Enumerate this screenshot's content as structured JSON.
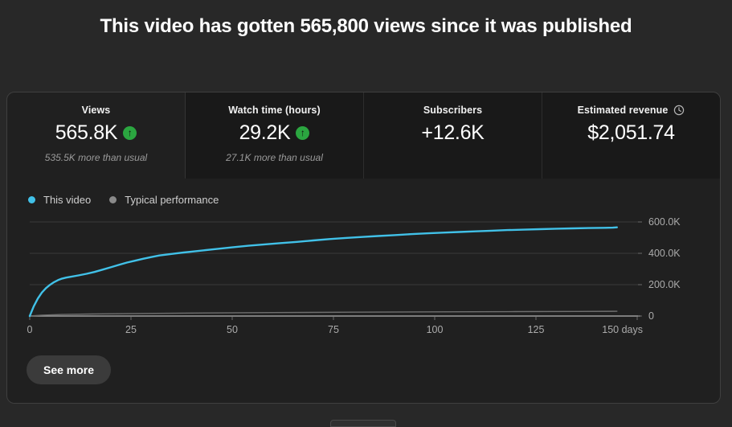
{
  "page": {
    "title": "This video has gotten 565,800 views since it was published"
  },
  "icons": {
    "up_arrow": "↑"
  },
  "metrics_tabs": [
    {
      "label": "Views",
      "value": "565.8K",
      "trend_icon": "up-arrow-circle",
      "sub_label": "535.5K more than usual",
      "selected": true
    },
    {
      "label": "Watch time (hours)",
      "value": "29.2K",
      "trend_icon": "up-arrow-circle",
      "sub_label": "27.1K more than usual",
      "selected": false
    },
    {
      "label": "Subscribers",
      "value": "+12.6K",
      "selected": false
    },
    {
      "label": "Estimated revenue",
      "value": "$2,051.74",
      "info_icon": "clock",
      "selected": false
    }
  ],
  "legend": {
    "items": [
      {
        "label": "This video",
        "color": "#41c1e8"
      },
      {
        "label": "Typical performance",
        "color": "#8a8a8a"
      }
    ]
  },
  "chart_data": {
    "type": "line",
    "x_unit": "days",
    "x_range": [
      0,
      152
    ],
    "y_range": [
      0,
      646000
    ],
    "grid": true,
    "legend_position": "top-left",
    "y_axis": [
      {
        "label": "600.0K",
        "value": 600000
      },
      {
        "label": "400.0K",
        "value": 400000
      },
      {
        "label": "200.0K",
        "value": 200000
      },
      {
        "label": "0",
        "value": 0
      }
    ],
    "x_axis": [
      {
        "label": "0",
        "day": 0
      },
      {
        "label": "25",
        "day": 25
      },
      {
        "label": "50",
        "day": 50
      },
      {
        "label": "75",
        "day": 75
      },
      {
        "label": "100",
        "day": 100
      },
      {
        "label": "125",
        "day": 125
      },
      {
        "label": "150 days",
        "day": 150
      }
    ],
    "series": [
      {
        "name": "This video",
        "color": "#41c1e8",
        "points": [
          [
            0,
            0
          ],
          [
            1,
            62000
          ],
          [
            2,
            112000
          ],
          [
            3,
            150000
          ],
          [
            4,
            178000
          ],
          [
            5,
            199000
          ],
          [
            6,
            216000
          ],
          [
            7,
            229000
          ],
          [
            8,
            239000
          ],
          [
            9,
            245000
          ],
          [
            10,
            250000
          ],
          [
            12,
            259000
          ],
          [
            14,
            269000
          ],
          [
            16,
            281000
          ],
          [
            18,
            296000
          ],
          [
            20,
            311000
          ],
          [
            22,
            326000
          ],
          [
            24,
            341000
          ],
          [
            26,
            353000
          ],
          [
            28,
            365000
          ],
          [
            30,
            376000
          ],
          [
            32,
            386000
          ],
          [
            34,
            393000
          ],
          [
            36,
            399000
          ],
          [
            38,
            405000
          ],
          [
            40,
            411000
          ],
          [
            43,
            419000
          ],
          [
            46,
            427000
          ],
          [
            50,
            438000
          ],
          [
            54,
            448000
          ],
          [
            58,
            457000
          ],
          [
            62,
            465000
          ],
          [
            66,
            473000
          ],
          [
            70,
            482000
          ],
          [
            74,
            491000
          ],
          [
            78,
            498000
          ],
          [
            82,
            504000
          ],
          [
            86,
            510000
          ],
          [
            90,
            516000
          ],
          [
            94,
            522000
          ],
          [
            98,
            527000
          ],
          [
            102,
            532000
          ],
          [
            106,
            536000
          ],
          [
            110,
            540000
          ],
          [
            114,
            544000
          ],
          [
            118,
            548000
          ],
          [
            122,
            551000
          ],
          [
            126,
            554000
          ],
          [
            130,
            557000
          ],
          [
            134,
            559000
          ],
          [
            138,
            561000
          ],
          [
            142,
            562500
          ],
          [
            144,
            563500
          ],
          [
            145,
            565800
          ]
        ]
      },
      {
        "name": "Typical performance",
        "color": "#6f6f6f",
        "points": [
          [
            0,
            0
          ],
          [
            3,
            5000
          ],
          [
            8,
            9500
          ],
          [
            15,
            13000
          ],
          [
            25,
            16000
          ],
          [
            40,
            19000
          ],
          [
            60,
            22000
          ],
          [
            80,
            24500
          ],
          [
            100,
            26500
          ],
          [
            120,
            28300
          ],
          [
            135,
            29400
          ],
          [
            145,
            30300
          ]
        ]
      }
    ]
  },
  "footer": {
    "see_more_label": "See more"
  },
  "colors": {
    "page_bg": "#282828",
    "card_bg": "#202020",
    "tab_bg": "#191919",
    "accent_green": "#2ba640",
    "line_blue": "#41c1e8",
    "gridline": "#3a3a3a",
    "baseline": "#9c9c9c",
    "axis_text": "#ababab"
  }
}
